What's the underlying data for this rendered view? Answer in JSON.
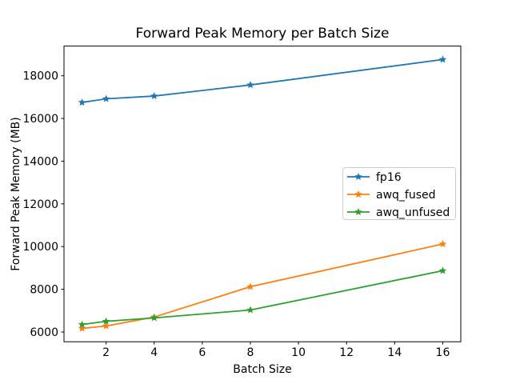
{
  "figure": {
    "background": "#ffffff",
    "spine_color": "#000000"
  },
  "chart_data": {
    "type": "line",
    "title": "Forward Peak Memory per Batch Size",
    "xlabel": "Batch Size",
    "ylabel": "Forward Peak Memory (MB)",
    "x": [
      1,
      2,
      4,
      8,
      16
    ],
    "series": [
      {
        "name": "fp16",
        "color": "#1f77b4",
        "marker": "star",
        "values": [
          16750,
          16920,
          17050,
          17570,
          18760
        ]
      },
      {
        "name": "awq_fused",
        "color": "#ff7f0e",
        "marker": "star",
        "values": [
          6170,
          6280,
          6700,
          8120,
          10120
        ]
      },
      {
        "name": "awq_unfused",
        "color": "#2ca02c",
        "marker": "star",
        "values": [
          6350,
          6500,
          6660,
          7030,
          8870
        ]
      }
    ],
    "xlim": [
      0.25,
      16.75
    ],
    "ylim": [
      5543,
      19390
    ],
    "xticks": [
      2,
      4,
      6,
      8,
      10,
      12,
      14,
      16
    ],
    "yticks": [
      6000,
      8000,
      10000,
      12000,
      14000,
      16000,
      18000
    ],
    "grid": false,
    "legend": {
      "position": "center right",
      "border_color": "#cccccc",
      "face_color": "#ffffff",
      "labels": [
        "fp16",
        "awq_fused",
        "awq_unfused"
      ]
    }
  }
}
